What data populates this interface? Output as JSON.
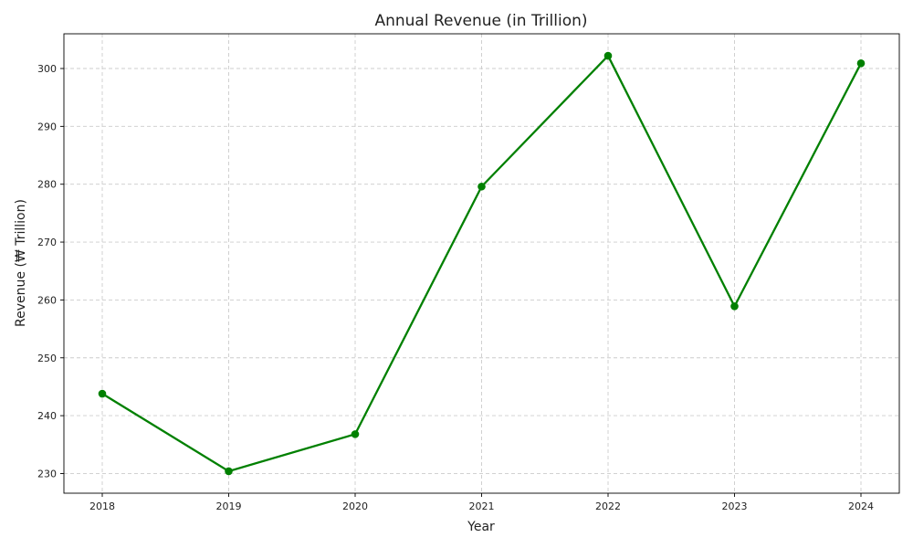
{
  "chart_data": {
    "type": "line",
    "title": "Annual Revenue (in Trillion)",
    "xlabel": "Year",
    "ylabel": "Revenue (₩ Trillion)",
    "categories": [
      "2018",
      "2019",
      "2020",
      "2021",
      "2022",
      "2023",
      "2024"
    ],
    "series": [
      {
        "values": [
          243.8,
          230.4,
          236.8,
          279.6,
          302.2,
          258.9,
          300.9
        ],
        "color": "#008000",
        "marker": "circle"
      }
    ],
    "yticks": [
      230,
      240,
      250,
      260,
      270,
      280,
      290,
      300
    ],
    "ylim": [
      226.6,
      306.0
    ],
    "grid": true,
    "legend": "none"
  }
}
